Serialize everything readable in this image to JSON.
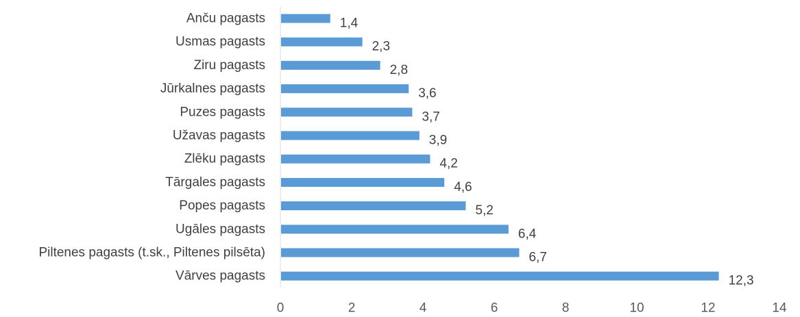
{
  "chart_data": {
    "type": "bar",
    "orientation": "horizontal",
    "title": "",
    "xlabel": "",
    "ylabel": "",
    "categories": [
      "Anču pagasts",
      "Usmas pagasts",
      "Ziru pagasts",
      "Jūrkalnes pagasts",
      "Puzes pagasts",
      "Užavas pagasts",
      "Zlēku pagasts",
      "Tārgales pagasts",
      "Popes pagasts",
      "Ugāles pagasts",
      "Piltenes pagasts (t.sk., Piltenes pilsēta)",
      "Vārves pagasts"
    ],
    "values": [
      1.4,
      2.3,
      2.8,
      3.6,
      3.7,
      3.9,
      4.2,
      4.6,
      5.2,
      6.4,
      6.7,
      12.3
    ],
    "data_labels": [
      "1,4",
      "2,3",
      "2,8",
      "3,6",
      "3,7",
      "3,9",
      "4,2",
      "4,6",
      "5,2",
      "6,4",
      "6,7",
      "12,3"
    ],
    "xlim": [
      0,
      14
    ],
    "xticks": [
      "0",
      "2",
      "4",
      "6",
      "8",
      "10",
      "12",
      "14"
    ],
    "grid": false,
    "legend": "none",
    "bar_color": "#5B9BD5",
    "axis_color": "#D9D9D9"
  }
}
